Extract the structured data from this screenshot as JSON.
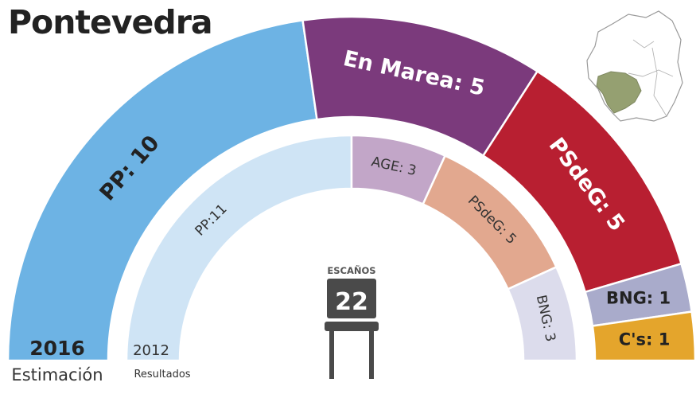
{
  "title": "Pontevedra",
  "colors": {
    "PP": "#6db3e4",
    "En Marea": "#7b3a7c",
    "PSdeG": "#b81f31",
    "BNG": "#a9abcb",
    "Cs": "#e4a52c",
    "PP_2012": "#cfe4f5",
    "AGE": "#c2a6c8",
    "PSdeG_2012": "#e2a88f",
    "BNG_2012": "#dcdcec",
    "text_dark": "#222222",
    "map_fill": "#95a071"
  },
  "chart_data": [
    {
      "type": "pie",
      "style": "half-donut (parliament)",
      "label": "2016",
      "sublabel": "Estimación",
      "total_seats": 22,
      "slices": [
        {
          "party": "PP",
          "label": "PP: 10",
          "value": 10
        },
        {
          "party": "En Marea",
          "label": "En Marea: 5",
          "value": 5
        },
        {
          "party": "PSdeG",
          "label": "PSdeG: 5",
          "value": 5
        },
        {
          "party": "BNG",
          "label": "BNG: 1",
          "value": 1
        },
        {
          "party": "C's",
          "label": "C's: 1",
          "value": 1
        }
      ]
    },
    {
      "type": "pie",
      "style": "half-donut (parliament)",
      "label": "2012",
      "sublabel": "Resultados",
      "total_seats": 22,
      "slices": [
        {
          "party": "PP",
          "label": "PP:11",
          "value": 11
        },
        {
          "party": "AGE",
          "label": "AGE: 3",
          "value": 3
        },
        {
          "party": "PSdeG",
          "label": "PSdeG: 5",
          "value": 5
        },
        {
          "party": "BNG",
          "label": "BNG: 3",
          "value": 3
        }
      ]
    }
  ],
  "seats": {
    "label": "ESCAÑOS",
    "value": "22"
  },
  "map": {
    "icon": "galicia-map-icon"
  }
}
